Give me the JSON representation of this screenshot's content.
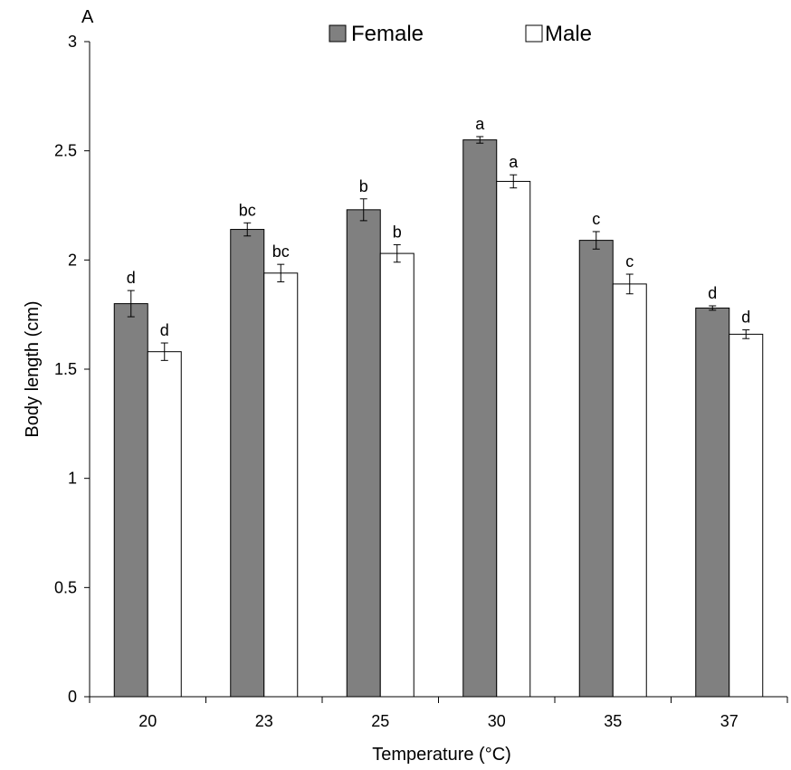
{
  "chart_data": {
    "type": "bar",
    "panel_label": "A",
    "xlabel": "Temperature  (°C)",
    "ylabel": "Body length (cm)",
    "ylim": [
      0,
      3
    ],
    "yticks": [
      "0",
      "0.5",
      "1",
      "1.5",
      "2",
      "2.5",
      "3"
    ],
    "categories": [
      "20",
      "23",
      "25",
      "30",
      "35",
      "37"
    ],
    "legend_position": "top",
    "series": [
      {
        "name": "Female",
        "color": "#808080",
        "values": [
          1.8,
          2.14,
          2.23,
          2.55,
          2.09,
          1.78
        ],
        "errors": [
          0.06,
          0.03,
          0.05,
          0.015,
          0.04,
          0.01
        ],
        "labels": [
          "d",
          "bc",
          "b",
          "a",
          "c",
          "d"
        ]
      },
      {
        "name": "Male",
        "color": "#ffffff",
        "values": [
          1.58,
          1.94,
          2.03,
          2.36,
          1.89,
          1.66
        ],
        "errors": [
          0.04,
          0.04,
          0.04,
          0.03,
          0.045,
          0.02
        ],
        "labels": [
          "d",
          "bc",
          "b",
          "a",
          "c",
          "d"
        ]
      }
    ]
  }
}
